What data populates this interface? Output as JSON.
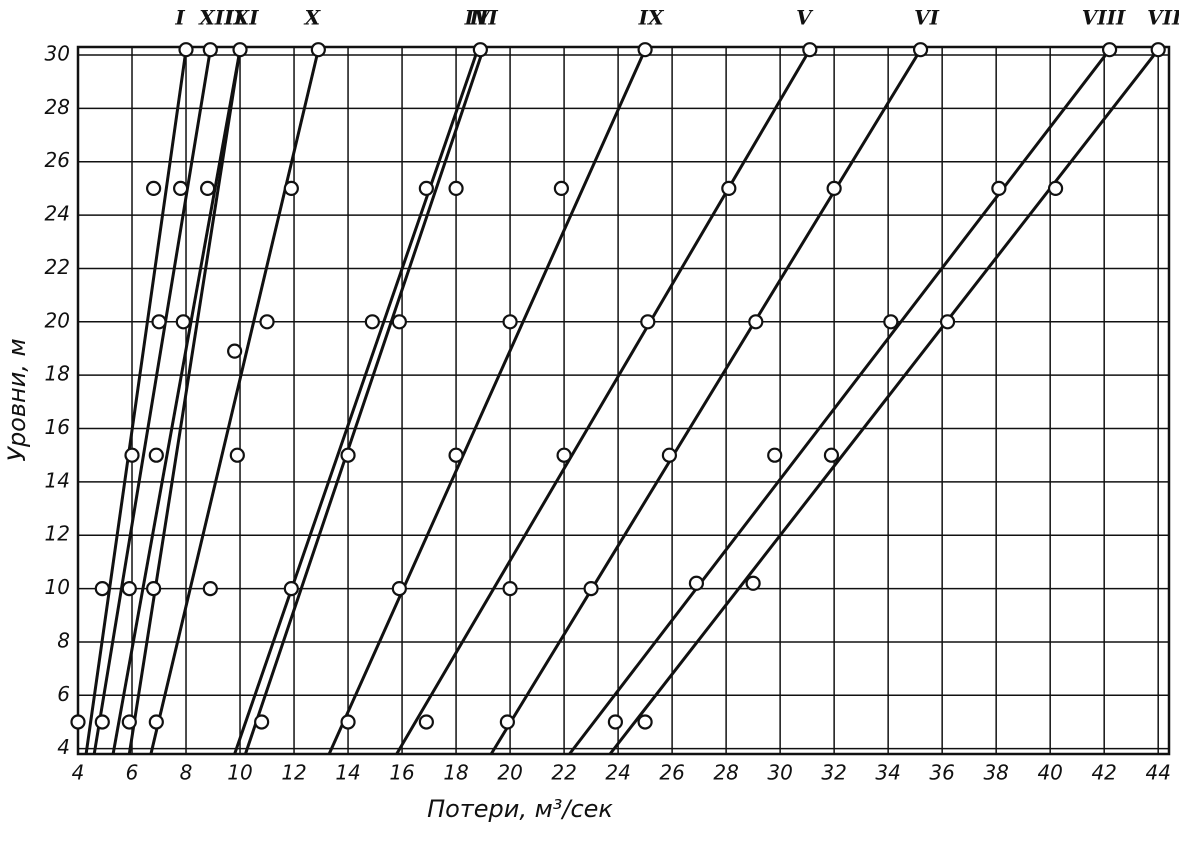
{
  "chart_data": {
    "type": "line",
    "x_label": "Потери, м³/сек",
    "y_label": "Уровни, м",
    "xlim": [
      4,
      44.4
    ],
    "ylim": [
      3.8,
      30.3
    ],
    "xticks": [
      4,
      6,
      8,
      10,
      12,
      14,
      16,
      18,
      20,
      22,
      24,
      26,
      28,
      30,
      32,
      34,
      36,
      38,
      40,
      42,
      44
    ],
    "yticks": [
      4,
      6,
      8,
      10,
      12,
      14,
      16,
      18,
      20,
      22,
      24,
      26,
      28,
      30
    ],
    "grid": true,
    "color": "#111111",
    "series": [
      {
        "name": "I",
        "x": [
          4.3,
          8.0
        ],
        "values": [
          3.8,
          30.2
        ]
      },
      {
        "name": "XII",
        "x": [
          4.6,
          8.9
        ],
        "values": [
          3.8,
          30.2
        ]
      },
      {
        "name": "II",
        "x": [
          5.3,
          10.0
        ],
        "values": [
          3.8,
          30.2
        ]
      },
      {
        "name": "XI",
        "x": [
          5.9,
          10.0
        ],
        "values": [
          3.8,
          30.2
        ]
      },
      {
        "name": "X",
        "x": [
          6.7,
          12.9
        ],
        "values": [
          3.8,
          30.2
        ]
      },
      {
        "name": "III",
        "x": [
          9.8,
          18.8
        ],
        "values": [
          3.8,
          30.2
        ]
      },
      {
        "name": "IV",
        "x": [
          10.2,
          19.0
        ],
        "values": [
          3.8,
          30.2
        ]
      },
      {
        "name": "IX",
        "x": [
          13.3,
          25.0
        ],
        "values": [
          3.8,
          30.2
        ]
      },
      {
        "name": "V",
        "x": [
          15.8,
          31.1
        ],
        "values": [
          3.8,
          30.2
        ]
      },
      {
        "name": "VI",
        "x": [
          19.3,
          35.2
        ],
        "values": [
          3.8,
          30.2
        ]
      },
      {
        "name": "VIII",
        "x": [
          22.2,
          42.2
        ],
        "values": [
          3.8,
          30.2
        ]
      },
      {
        "name": "VII",
        "x": [
          23.7,
          44.0
        ],
        "values": [
          3.8,
          30.2
        ]
      }
    ],
    "points": {
      "x": [
        8.0,
        8.9,
        10.0,
        12.9,
        18.9,
        25.0,
        31.1,
        35.2,
        42.2,
        44.0,
        6.8,
        7.8,
        8.8,
        11.9,
        16.9,
        18.0,
        21.9,
        28.1,
        32.0,
        38.1,
        40.2,
        7.0,
        7.9,
        11.0,
        14.9,
        15.9,
        20.0,
        25.1,
        29.1,
        34.1,
        36.2,
        9.8,
        6.0,
        6.9,
        9.9,
        14.0,
        18.0,
        22.0,
        25.9,
        29.8,
        31.9,
        4.9,
        5.9,
        6.8,
        8.9,
        11.9,
        15.9,
        20.0,
        23.0,
        26.9,
        29.0,
        4.0,
        4.9,
        5.9,
        6.9,
        10.8,
        14.0,
        16.9,
        19.9,
        23.9,
        25.0
      ],
      "y": [
        30.2,
        30.2,
        30.2,
        30.2,
        30.2,
        30.2,
        30.2,
        30.2,
        30.2,
        30.2,
        25,
        25,
        25,
        25,
        25,
        25,
        25,
        25,
        25,
        25,
        25,
        20,
        20,
        20,
        20,
        20,
        20,
        20,
        20,
        20,
        20,
        18.9,
        15,
        15,
        15,
        15,
        15,
        15,
        15,
        15,
        15,
        10,
        10,
        10,
        10,
        10,
        10,
        10,
        10,
        10.2,
        10.2,
        5,
        5,
        5,
        5,
        5,
        5,
        5,
        5,
        5,
        5
      ]
    }
  }
}
